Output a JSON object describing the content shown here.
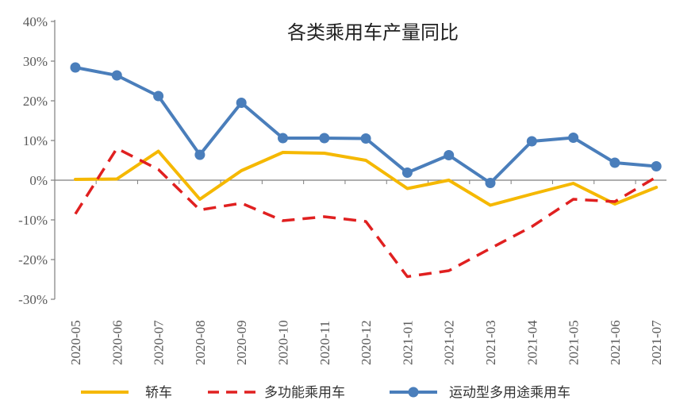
{
  "chart_data": {
    "type": "line",
    "title": "各类乘用车产量同比",
    "categories": [
      "2020-05",
      "2020-06",
      "2020-07",
      "2020-08",
      "2020-09",
      "2020-10",
      "2020-11",
      "2020-12",
      "2021-01",
      "2021-02",
      "2021-03",
      "2021-04",
      "2021-05",
      "2021-06",
      "2021-07"
    ],
    "y_ticks": [
      "40%",
      "30%",
      "20%",
      "10%",
      "0%",
      "-10%",
      "-20%",
      "-30%"
    ],
    "ylim": [
      -30,
      40
    ],
    "legend_position": "bottom",
    "grid": false,
    "series": [
      {
        "name": "轿车",
        "color": "#F5B800",
        "style": "solid",
        "markers": false,
        "values": [
          0.2,
          0.3,
          7.3,
          -4.8,
          2.4,
          7.0,
          6.8,
          5.0,
          -2.1,
          0.0,
          -6.3,
          -3.5,
          -0.8,
          -6.0,
          -1.8
        ]
      },
      {
        "name": "多功能乘用车",
        "color": "#E02020",
        "style": "dashed",
        "markers": false,
        "values": [
          -8.5,
          8.0,
          2.7,
          -7.5,
          -5.8,
          -10.2,
          -9.2,
          -10.4,
          -24.3,
          -22.8,
          -17.2,
          -11.7,
          -4.8,
          -5.4,
          0.8
        ]
      },
      {
        "name": "运动型多用途乘用车",
        "color": "#4A7EBB",
        "style": "solid",
        "markers": true,
        "values": [
          28.4,
          26.4,
          21.2,
          6.4,
          19.5,
          10.6,
          10.6,
          10.5,
          1.9,
          6.3,
          -0.7,
          9.8,
          10.7,
          4.4,
          3.5
        ]
      }
    ]
  }
}
